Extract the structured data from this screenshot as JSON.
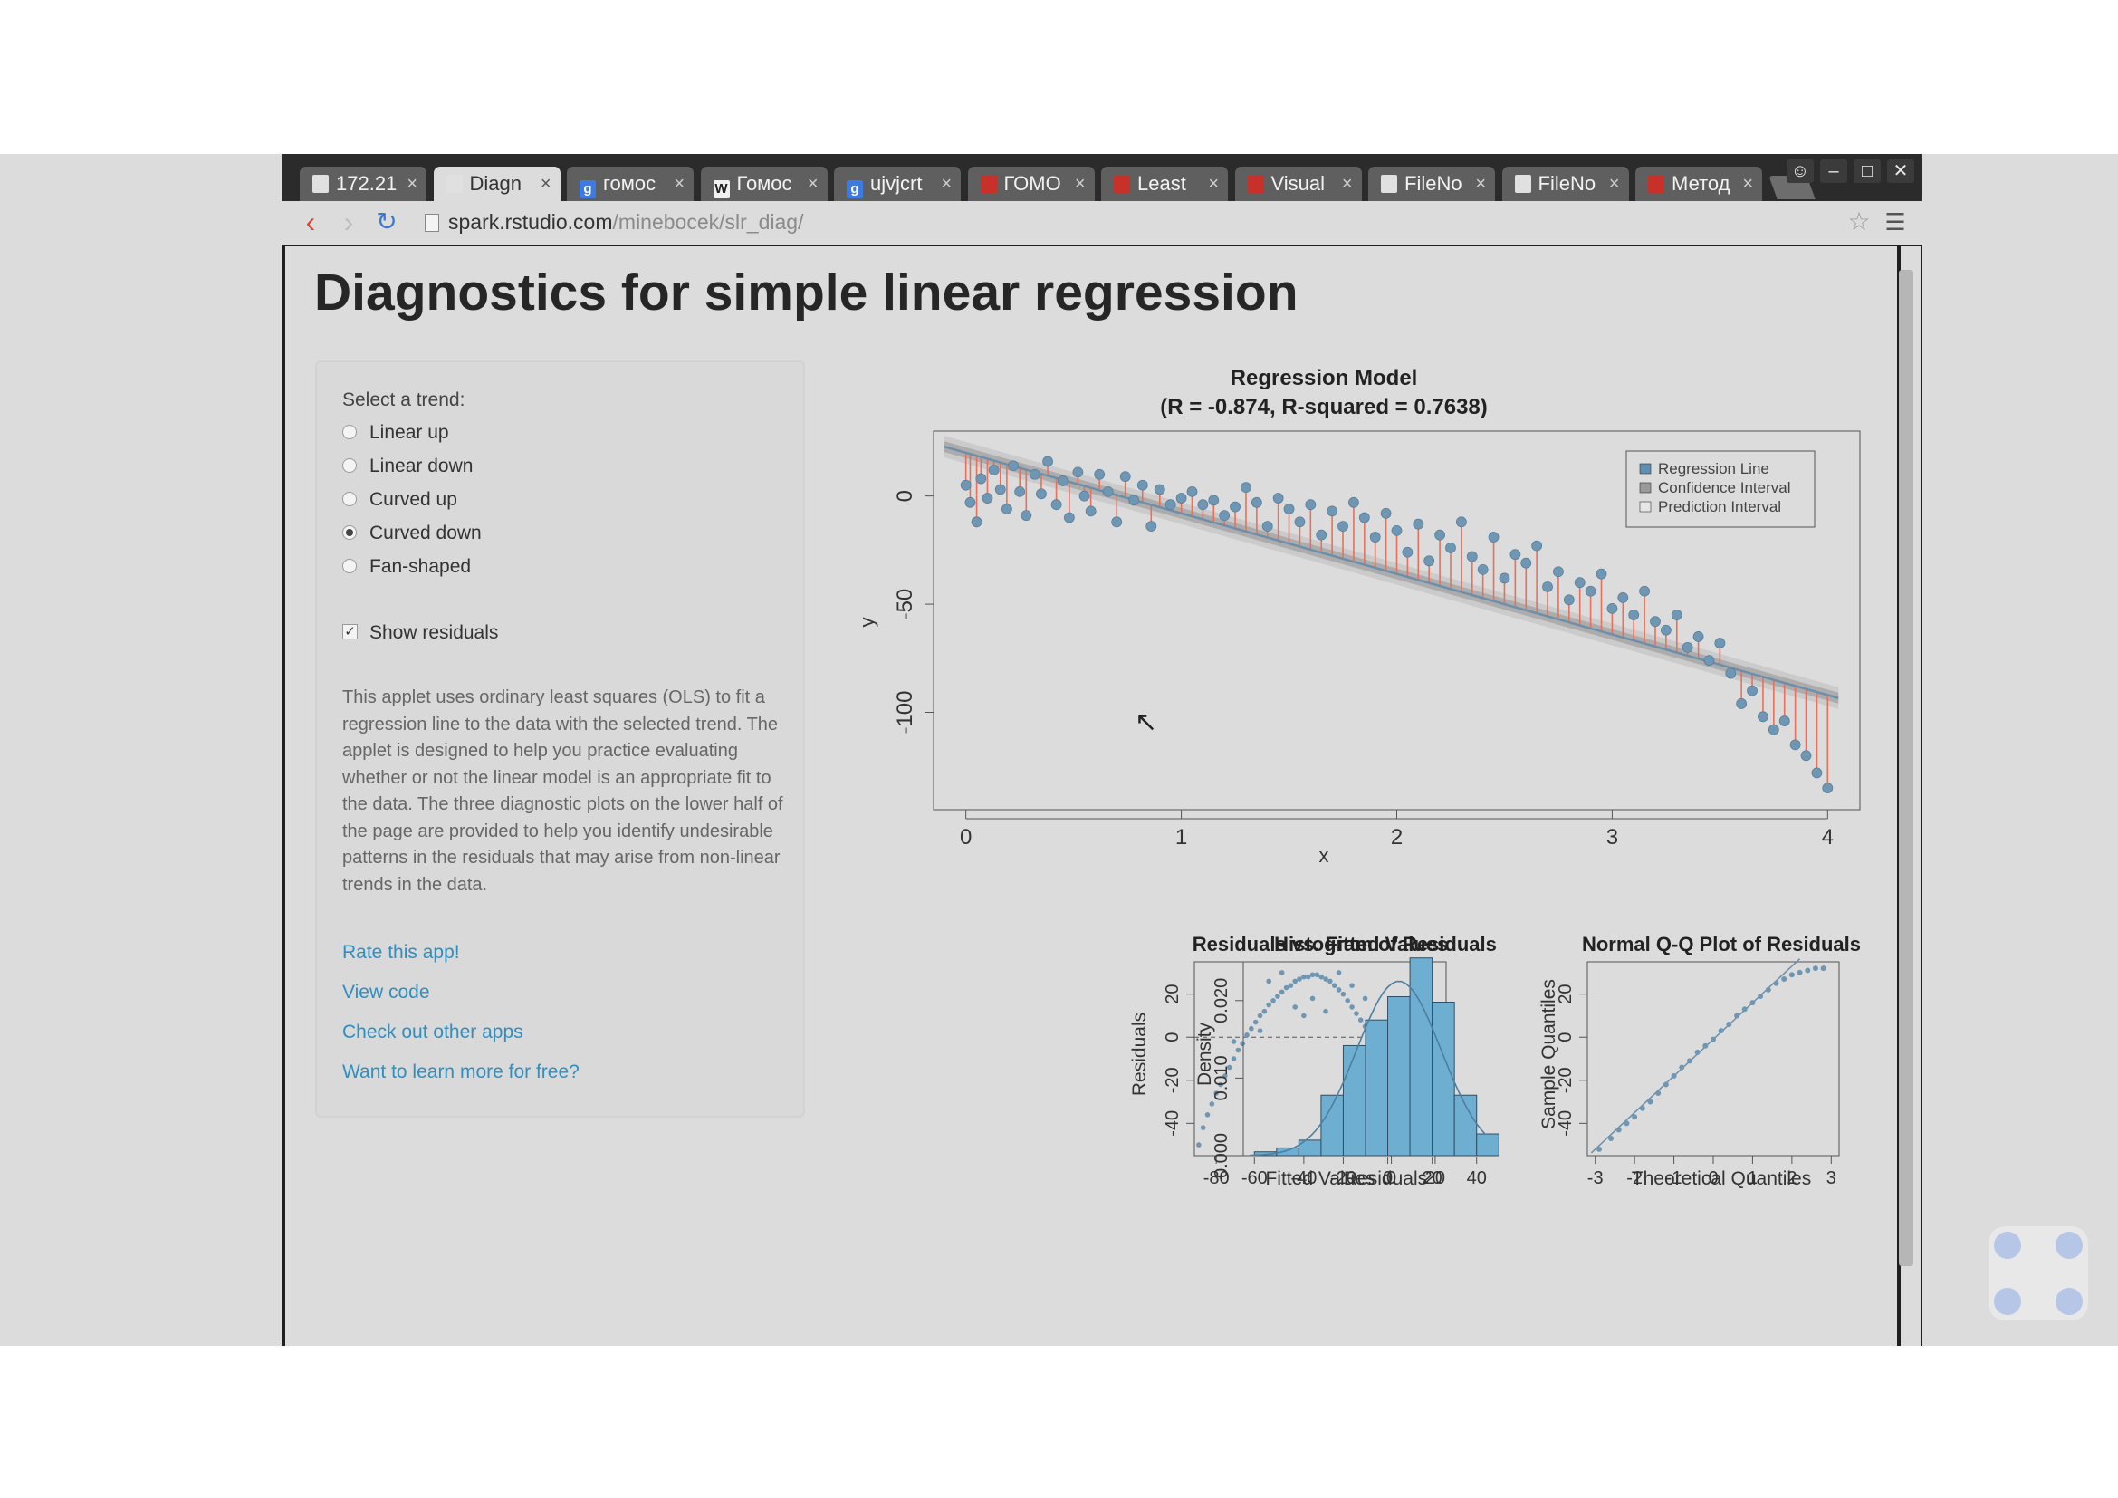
{
  "tabs": [
    {
      "label": "172.21",
      "icon": "page-icon"
    },
    {
      "label": "Diagn",
      "icon": "page-icon",
      "active": true
    },
    {
      "label": "гомос",
      "icon": "google-icon"
    },
    {
      "label": "Гомос",
      "icon": "wikipedia-icon"
    },
    {
      "label": "ujvjcrt",
      "icon": "google-icon"
    },
    {
      "label": "ГОМО",
      "icon": "site-icon"
    },
    {
      "label": "Least",
      "icon": "site-icon"
    },
    {
      "label": "Visual",
      "icon": "site-icon"
    },
    {
      "label": "FileNo",
      "icon": "page-icon"
    },
    {
      "label": "FileNo",
      "icon": "page-icon"
    },
    {
      "label": "Метод",
      "icon": "site-icon"
    }
  ],
  "address": {
    "host": "spark.rstudio.com",
    "path": "/minebocek/slr_diag/"
  },
  "page": {
    "title": "Diagnostics for simple linear regression"
  },
  "sidebar": {
    "trend_label": "Select a trend:",
    "trends": [
      {
        "label": "Linear up",
        "checked": false
      },
      {
        "label": "Linear down",
        "checked": false
      },
      {
        "label": "Curved up",
        "checked": false
      },
      {
        "label": "Curved down",
        "checked": true
      },
      {
        "label": "Fan-shaped",
        "checked": false
      }
    ],
    "show_residuals": {
      "label": "Show residuals",
      "checked": true
    },
    "description": "This applet uses ordinary least squares (OLS) to fit a regression line to the data with the selected trend. The applet is designed to help you practice evaluating whether or not the linear model is an appropriate fit to the data. The three diagnostic plots on the lower half of the page are provided to help you identify undesirable patterns in the residuals that may arise from non-linear trends in the data.",
    "links": [
      "Rate this app!",
      "View code",
      "Check out other apps",
      "Want to learn more for free?"
    ]
  },
  "colors": {
    "points": "#6f97b4",
    "residuals": "#e8705a",
    "fit_line": "#6e8faa",
    "hist_bar": "#6eaed0",
    "link": "#2f8fc0"
  },
  "chart_data": [
    {
      "type": "scatter",
      "title": "Regression Model",
      "subtitle": "(R = -0.874, R-squared = 0.7638)",
      "xlabel": "x",
      "ylabel": "y",
      "xlim": [
        -0.15,
        4.15
      ],
      "ylim": [
        -145,
        30
      ],
      "xticks": [
        0,
        1,
        2,
        3,
        4
      ],
      "yticks": [
        0,
        -50,
        -100
      ],
      "legend": {
        "position": "top-right",
        "entries": [
          "Regression Line",
          "Confidence Interval",
          "Prediction Interval"
        ]
      },
      "regression_line": {
        "intercept": 20,
        "slope": -28
      },
      "show_residuals": true,
      "points": [
        [
          0.0,
          5
        ],
        [
          0.02,
          -3
        ],
        [
          0.05,
          -12
        ],
        [
          0.07,
          8
        ],
        [
          0.1,
          -1
        ],
        [
          0.13,
          12
        ],
        [
          0.16,
          3
        ],
        [
          0.19,
          -6
        ],
        [
          0.22,
          14
        ],
        [
          0.25,
          2
        ],
        [
          0.28,
          -9
        ],
        [
          0.32,
          10
        ],
        [
          0.35,
          1
        ],
        [
          0.38,
          16
        ],
        [
          0.42,
          -4
        ],
        [
          0.45,
          7
        ],
        [
          0.48,
          -10
        ],
        [
          0.52,
          11
        ],
        [
          0.55,
          0
        ],
        [
          0.58,
          -7
        ],
        [
          0.62,
          10
        ],
        [
          0.66,
          2
        ],
        [
          0.7,
          -12
        ],
        [
          0.74,
          9
        ],
        [
          0.78,
          -2
        ],
        [
          0.82,
          5
        ],
        [
          0.86,
          -14
        ],
        [
          0.9,
          3
        ],
        [
          0.95,
          -4
        ],
        [
          1.0,
          -1
        ],
        [
          1.05,
          2
        ],
        [
          1.1,
          -4
        ],
        [
          1.15,
          -2
        ],
        [
          1.2,
          -9
        ],
        [
          1.25,
          -5
        ],
        [
          1.3,
          4
        ],
        [
          1.35,
          -3
        ],
        [
          1.4,
          -14
        ],
        [
          1.45,
          -1
        ],
        [
          1.5,
          -6
        ],
        [
          1.55,
          -12
        ],
        [
          1.6,
          -4
        ],
        [
          1.65,
          -18
        ],
        [
          1.7,
          -7
        ],
        [
          1.75,
          -14
        ],
        [
          1.8,
          -3
        ],
        [
          1.85,
          -10
        ],
        [
          1.9,
          -19
        ],
        [
          1.95,
          -8
        ],
        [
          2.0,
          -16
        ],
        [
          2.05,
          -26
        ],
        [
          2.1,
          -13
        ],
        [
          2.15,
          -30
        ],
        [
          2.2,
          -18
        ],
        [
          2.25,
          -24
        ],
        [
          2.3,
          -12
        ],
        [
          2.35,
          -28
        ],
        [
          2.4,
          -34
        ],
        [
          2.45,
          -19
        ],
        [
          2.5,
          -38
        ],
        [
          2.55,
          -27
        ],
        [
          2.6,
          -31
        ],
        [
          2.65,
          -23
        ],
        [
          2.7,
          -42
        ],
        [
          2.75,
          -35
        ],
        [
          2.8,
          -48
        ],
        [
          2.85,
          -40
        ],
        [
          2.9,
          -44
        ],
        [
          2.95,
          -36
        ],
        [
          3.0,
          -52
        ],
        [
          3.05,
          -47
        ],
        [
          3.1,
          -55
        ],
        [
          3.15,
          -44
        ],
        [
          3.2,
          -58
        ],
        [
          3.25,
          -62
        ],
        [
          3.3,
          -55
        ],
        [
          3.35,
          -70
        ],
        [
          3.4,
          -65
        ],
        [
          3.45,
          -76
        ],
        [
          3.5,
          -68
        ],
        [
          3.55,
          -82
        ],
        [
          3.6,
          -96
        ],
        [
          3.65,
          -90
        ],
        [
          3.7,
          -102
        ],
        [
          3.75,
          -108
        ],
        [
          3.8,
          -104
        ],
        [
          3.85,
          -115
        ],
        [
          3.9,
          -120
        ],
        [
          3.95,
          -128
        ],
        [
          4.0,
          -135
        ]
      ]
    },
    {
      "type": "scatter",
      "title": "Residuals vs. Fitted Values",
      "xlabel": "Fitted Values",
      "ylabel": "Residuals",
      "xlim": [
        -90,
        25
      ],
      "ylim": [
        -55,
        35
      ],
      "xticks": [
        -80,
        -40,
        0,
        20
      ],
      "yticks": [
        20,
        0,
        -20,
        -40
      ],
      "reference_line": 0,
      "points": [
        [
          -88,
          -50
        ],
        [
          -86,
          -42
        ],
        [
          -84,
          -36
        ],
        [
          -82,
          -31
        ],
        [
          -80,
          -26
        ],
        [
          -78,
          -22
        ],
        [
          -76,
          -18
        ],
        [
          -74,
          -14
        ],
        [
          -72,
          -10
        ],
        [
          -70,
          -6
        ],
        [
          -68,
          -3
        ],
        [
          -66,
          1
        ],
        [
          -64,
          4
        ],
        [
          -62,
          7
        ],
        [
          -60,
          10
        ],
        [
          -58,
          12
        ],
        [
          -56,
          15
        ],
        [
          -54,
          17
        ],
        [
          -52,
          19
        ],
        [
          -50,
          21
        ],
        [
          -48,
          23
        ],
        [
          -46,
          24
        ],
        [
          -44,
          26
        ],
        [
          -42,
          27
        ],
        [
          -40,
          28
        ],
        [
          -38,
          28
        ],
        [
          -36,
          29
        ],
        [
          -34,
          29
        ],
        [
          -32,
          28
        ],
        [
          -30,
          27
        ],
        [
          -28,
          26
        ],
        [
          -26,
          24
        ],
        [
          -24,
          22
        ],
        [
          -22,
          20
        ],
        [
          -20,
          17
        ],
        [
          -18,
          14
        ],
        [
          -16,
          11
        ],
        [
          -14,
          8
        ],
        [
          -12,
          5
        ],
        [
          -10,
          2
        ],
        [
          -8,
          -2
        ],
        [
          -6,
          -5
        ],
        [
          -4,
          -8
        ],
        [
          -2,
          -12
        ],
        [
          0,
          -15
        ],
        [
          2,
          -18
        ],
        [
          4,
          -21
        ],
        [
          6,
          -24
        ],
        [
          8,
          -26
        ],
        [
          10,
          -28
        ],
        [
          12,
          -30
        ],
        [
          14,
          -31
        ],
        [
          16,
          -32
        ],
        [
          18,
          -33
        ],
        [
          -72,
          -2
        ],
        [
          -60,
          3
        ],
        [
          -50,
          30
        ],
        [
          -44,
          14
        ],
        [
          -36,
          18
        ],
        [
          -30,
          12
        ],
        [
          -24,
          30
        ],
        [
          -18,
          24
        ],
        [
          -12,
          18
        ],
        [
          -6,
          6
        ],
        [
          0,
          4
        ],
        [
          6,
          -10
        ],
        [
          12,
          -14
        ],
        [
          18,
          -18
        ],
        [
          -56,
          26
        ],
        [
          -40,
          10
        ]
      ]
    },
    {
      "type": "bar",
      "title": "Histogram of Residuals",
      "xlabel": "Residuals",
      "ylabel": "Density",
      "xlim": [
        -65,
        45
      ],
      "ylim": [
        0,
        0.025
      ],
      "xticks": [
        -60,
        -20,
        0,
        20,
        40
      ],
      "yticks": [
        0.0,
        0.01,
        0.02
      ],
      "bins": [
        -60,
        -50,
        -40,
        -30,
        -20,
        -10,
        0,
        10,
        20,
        30,
        40
      ],
      "values": [
        0.0005,
        0.001,
        0.002,
        0.0078,
        0.0142,
        0.0175,
        0.0205,
        0.0255,
        0.0198,
        0.0078,
        0.0028
      ],
      "density_curve": true
    },
    {
      "type": "scatter",
      "title": "Normal Q-Q Plot of Residuals",
      "xlabel": "Theoretical Quantiles",
      "ylabel": "Sample Quantiles",
      "xlim": [
        -3.2,
        3.2
      ],
      "ylim": [
        -55,
        35
      ],
      "xticks": [
        -3,
        -2,
        -1,
        0,
        1,
        2,
        3
      ],
      "yticks": [
        20,
        0,
        -20,
        -40
      ],
      "reference_line": {
        "intercept": -1,
        "slope": 17
      },
      "quantiles": [
        [
          -2.9,
          -52
        ],
        [
          -2.6,
          -47
        ],
        [
          -2.4,
          -43
        ],
        [
          -2.2,
          -40
        ],
        [
          -2.0,
          -37
        ],
        [
          -1.8,
          -33
        ],
        [
          -1.6,
          -30
        ],
        [
          -1.4,
          -26
        ],
        [
          -1.2,
          -22
        ],
        [
          -1.0,
          -18
        ],
        [
          -0.8,
          -14
        ],
        [
          -0.6,
          -11
        ],
        [
          -0.4,
          -7
        ],
        [
          -0.2,
          -4
        ],
        [
          0.0,
          -1
        ],
        [
          0.2,
          3
        ],
        [
          0.4,
          6
        ],
        [
          0.6,
          10
        ],
        [
          0.8,
          13
        ],
        [
          1.0,
          16
        ],
        [
          1.2,
          19
        ],
        [
          1.4,
          22
        ],
        [
          1.6,
          25
        ],
        [
          1.8,
          27
        ],
        [
          2.0,
          29
        ],
        [
          2.2,
          30
        ],
        [
          2.4,
          31
        ],
        [
          2.6,
          32
        ],
        [
          2.8,
          32
        ]
      ]
    }
  ]
}
